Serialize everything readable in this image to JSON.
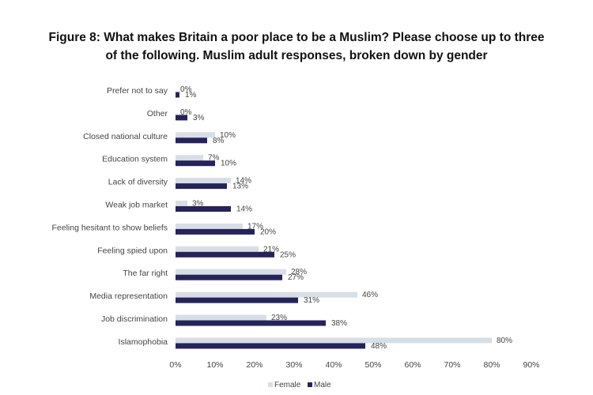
{
  "title_lines": [
    "Figure 8: What makes Britain a poor place to be a Muslim? Please choose up to three",
    "of the following. Muslim adult responses, broken down by gender"
  ],
  "chart_data": {
    "type": "bar",
    "orientation": "horizontal",
    "categories": [
      "Prefer not to say",
      "Other",
      "Closed national culture",
      "Education system",
      "Lack of diversity",
      "Weak job market",
      "Feeling hesitant to show beliefs",
      "Feeling spied upon",
      "The far right",
      "Media representation",
      "Job discrimination",
      "Islamophobia"
    ],
    "series": [
      {
        "name": "Female",
        "color": "#d8dee6",
        "values": [
          0,
          0,
          10,
          7,
          14,
          3,
          17,
          21,
          28,
          46,
          23,
          80
        ]
      },
      {
        "name": "Male",
        "color": "#25245a",
        "values": [
          1,
          3,
          8,
          10,
          13,
          14,
          20,
          25,
          27,
          31,
          38,
          48
        ]
      }
    ],
    "data_label_suffix": "%",
    "x_ticks": [
      "0%",
      "10%",
      "20%",
      "30%",
      "40%",
      "50%",
      "60%",
      "70%",
      "80%",
      "90%"
    ],
    "xlim": [
      0,
      90
    ],
    "grid": false,
    "legend_position": "bottom"
  }
}
